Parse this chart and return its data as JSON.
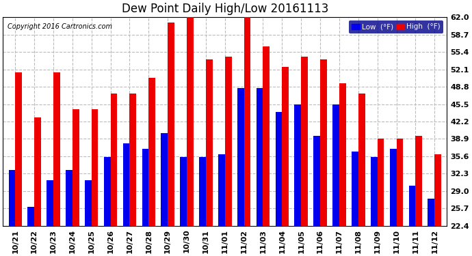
{
  "title": "Dew Point Daily High/Low 20161113",
  "copyright": "Copyright 2016 Cartronics.com",
  "categories": [
    "10/21",
    "10/22",
    "10/23",
    "10/24",
    "10/25",
    "10/26",
    "10/27",
    "10/28",
    "10/29",
    "10/30",
    "10/31",
    "11/01",
    "11/02",
    "11/03",
    "11/04",
    "11/05",
    "11/06",
    "11/07",
    "11/08",
    "11/09",
    "11/10",
    "11/11",
    "11/12"
  ],
  "low_values": [
    33.0,
    26.0,
    31.0,
    33.0,
    31.0,
    35.5,
    38.0,
    37.0,
    40.0,
    35.5,
    35.5,
    36.0,
    48.5,
    48.5,
    44.0,
    45.5,
    39.5,
    45.5,
    36.5,
    35.5,
    37.0,
    30.0,
    27.5
  ],
  "high_values": [
    51.5,
    43.0,
    51.5,
    44.5,
    44.5,
    47.5,
    47.5,
    50.5,
    61.0,
    62.0,
    54.0,
    54.5,
    62.0,
    56.5,
    52.5,
    54.5,
    54.0,
    49.5,
    47.5,
    39.0,
    39.0,
    39.5,
    36.0
  ],
  "low_color": "#0000ee",
  "high_color": "#ee0000",
  "bg_color": "#ffffff",
  "grid_color": "#bbbbbb",
  "ylim_min": 22.4,
  "ylim_max": 62.0,
  "yticks": [
    22.4,
    25.7,
    29.0,
    32.3,
    35.6,
    38.9,
    42.2,
    45.5,
    48.8,
    52.1,
    55.4,
    58.7,
    62.0
  ],
  "title_fontsize": 12,
  "copyright_fontsize": 7,
  "tick_fontsize": 8,
  "legend_low_label": "Low  (°F)",
  "legend_high_label": "High  (°F)",
  "legend_bg": "#00008b",
  "legend_text_color": "#ffffff"
}
